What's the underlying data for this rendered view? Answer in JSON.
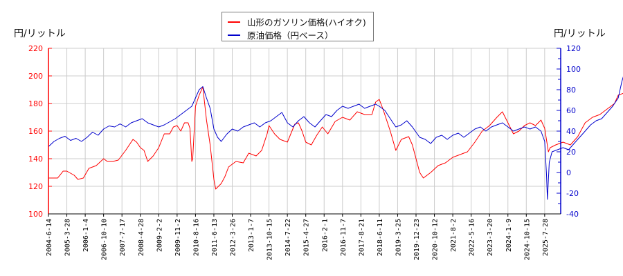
{
  "chart_data": {
    "type": "line",
    "title": "",
    "left_axis": {
      "label": "円/リットル",
      "ylim": [
        100,
        220
      ],
      "ticks": [
        100,
        120,
        140,
        160,
        180,
        200,
        220
      ],
      "color": "#ff0000"
    },
    "right_axis": {
      "label": "円/リットル",
      "ylim": [
        -40,
        120
      ],
      "ticks": [
        -40,
        -20,
        0,
        20,
        40,
        60,
        80,
        100,
        120
      ],
      "color": "#0000cc"
    },
    "grid": true,
    "legend_position": "top-center",
    "x_tick_labels": [
      "2004-6-14",
      "2005-3-28",
      "2006-1-4",
      "2006-10-10",
      "2007-7-17",
      "2008-4-28",
      "2009-2-2",
      "2009-11-2",
      "2010-8-16",
      "2011-6-13",
      "2012-3-26",
      "2013-1-7",
      "2013-10-15",
      "2014-7-22",
      "2015-4-27",
      "2016-2-1",
      "2016-11-7",
      "2017-8-21",
      "2018-6-11",
      "2019-3-25",
      "2019-12-23",
      "2020-10-12",
      "2021-8-2",
      "2022-5-16",
      "2023-3-20",
      "2024-1-9",
      "2024-10-15",
      "2025-7-28"
    ],
    "series": [
      {
        "name": "山形のガソリン価格(ハイオク)",
        "axis": "left",
        "color": "#ff0000",
        "points": [
          [
            0,
            126
          ],
          [
            0.5,
            126
          ],
          [
            0.8,
            131
          ],
          [
            1.0,
            131
          ],
          [
            1.4,
            128
          ],
          [
            1.6,
            125
          ],
          [
            1.9,
            126
          ],
          [
            2.2,
            133
          ],
          [
            2.6,
            135
          ],
          [
            3.0,
            140
          ],
          [
            3.2,
            138
          ],
          [
            3.5,
            138
          ],
          [
            3.8,
            139
          ],
          [
            4.2,
            146
          ],
          [
            4.4,
            150
          ],
          [
            4.6,
            154
          ],
          [
            4.8,
            152
          ],
          [
            5.0,
            148
          ],
          [
            5.2,
            146
          ],
          [
            5.4,
            138
          ],
          [
            5.7,
            142
          ],
          [
            6.0,
            148
          ],
          [
            6.3,
            158
          ],
          [
            6.6,
            158
          ],
          [
            6.8,
            163
          ],
          [
            7.0,
            164
          ],
          [
            7.2,
            160
          ],
          [
            7.4,
            166
          ],
          [
            7.6,
            166
          ],
          [
            7.7,
            162
          ],
          [
            7.8,
            138
          ],
          [
            7.85,
            140
          ],
          [
            8.0,
            178
          ],
          [
            8.2,
            186
          ],
          [
            8.4,
            192
          ],
          [
            8.6,
            168
          ],
          [
            8.8,
            150
          ],
          [
            9.0,
            125
          ],
          [
            9.1,
            118
          ],
          [
            9.4,
            122
          ],
          [
            9.6,
            127
          ],
          [
            9.8,
            134
          ],
          [
            10.2,
            138
          ],
          [
            10.6,
            137
          ],
          [
            10.9,
            144
          ],
          [
            11.3,
            142
          ],
          [
            11.6,
            146
          ],
          [
            11.9,
            158
          ],
          [
            12.0,
            164
          ],
          [
            12.3,
            158
          ],
          [
            12.6,
            154
          ],
          [
            13.0,
            152
          ],
          [
            13.4,
            165
          ],
          [
            13.6,
            166
          ],
          [
            13.8,
            160
          ],
          [
            14.0,
            152
          ],
          [
            14.3,
            150
          ],
          [
            14.6,
            157
          ],
          [
            14.9,
            163
          ],
          [
            15.2,
            158
          ],
          [
            15.6,
            167
          ],
          [
            16.0,
            170
          ],
          [
            16.4,
            168
          ],
          [
            16.8,
            174
          ],
          [
            17.2,
            172
          ],
          [
            17.6,
            172
          ],
          [
            17.8,
            181
          ],
          [
            18.0,
            183
          ],
          [
            18.2,
            176
          ],
          [
            18.6,
            160
          ],
          [
            18.9,
            146
          ],
          [
            19.2,
            154
          ],
          [
            19.6,
            156
          ],
          [
            19.8,
            150
          ],
          [
            20.2,
            130
          ],
          [
            20.4,
            126
          ],
          [
            20.8,
            130
          ],
          [
            21.2,
            135
          ],
          [
            21.6,
            137
          ],
          [
            22.0,
            141
          ],
          [
            22.4,
            143
          ],
          [
            22.8,
            145
          ],
          [
            23.2,
            152
          ],
          [
            23.6,
            160
          ],
          [
            24.0,
            164
          ],
          [
            24.4,
            170
          ],
          [
            24.7,
            174
          ],
          [
            25.0,
            166
          ],
          [
            25.3,
            158
          ],
          [
            25.6,
            160
          ],
          [
            25.9,
            164
          ],
          [
            26.2,
            166
          ],
          [
            26.5,
            164
          ],
          [
            26.8,
            168
          ],
          [
            27.0,
            162
          ],
          [
            27.2,
            145
          ],
          [
            27.3,
            148
          ],
          [
            27.6,
            150
          ],
          [
            28.0,
            152
          ],
          [
            28.4,
            150
          ],
          [
            28.8,
            156
          ],
          [
            29.2,
            166
          ],
          [
            29.6,
            170
          ],
          [
            30.0,
            172
          ],
          [
            30.4,
            176
          ],
          [
            30.8,
            180
          ],
          [
            31.0,
            186
          ],
          [
            31.4,
            188
          ],
          [
            31.7,
            190
          ],
          [
            32.0,
            182
          ],
          [
            32.4,
            180
          ],
          [
            32.7,
            184
          ],
          [
            33.0,
            188
          ],
          [
            33.4,
            186
          ],
          [
            33.8,
            192
          ],
          [
            34.2,
            193
          ],
          [
            34.5,
            187
          ],
          [
            34.8,
            186
          ],
          [
            35.2,
            186
          ],
          [
            35.6,
            188
          ],
          [
            36.0,
            186
          ],
          [
            36.4,
            184
          ],
          [
            36.8,
            186
          ],
          [
            37.2,
            202
          ],
          [
            37.5,
            190
          ],
          [
            37.8,
            188
          ],
          [
            38.1,
            188
          ],
          [
            38.4,
            178
          ],
          [
            38.8,
            180
          ],
          [
            39.2,
            180
          ],
          [
            39.5,
            182
          ],
          [
            39.7,
            175
          ],
          [
            40.0,
            172
          ],
          [
            40.2,
            178
          ],
          [
            40.4,
            185
          ],
          [
            40.6,
            197
          ]
        ]
      },
      {
        "name": "原油価格（円ベース）",
        "axis": "right",
        "color": "#0000cc",
        "points": [
          [
            0,
            25
          ],
          [
            0.3,
            30
          ],
          [
            0.6,
            33
          ],
          [
            0.9,
            35
          ],
          [
            1.2,
            31
          ],
          [
            1.5,
            33
          ],
          [
            1.8,
            30
          ],
          [
            2.1,
            34
          ],
          [
            2.4,
            39
          ],
          [
            2.7,
            36
          ],
          [
            3.0,
            42
          ],
          [
            3.3,
            45
          ],
          [
            3.6,
            44
          ],
          [
            3.9,
            47
          ],
          [
            4.2,
            44
          ],
          [
            4.5,
            48
          ],
          [
            4.8,
            50
          ],
          [
            5.1,
            52
          ],
          [
            5.4,
            48
          ],
          [
            5.7,
            46
          ],
          [
            6.0,
            44
          ],
          [
            6.3,
            46
          ],
          [
            6.6,
            49
          ],
          [
            6.9,
            52
          ],
          [
            7.2,
            56
          ],
          [
            7.5,
            60
          ],
          [
            7.8,
            64
          ],
          [
            8.0,
            72
          ],
          [
            8.2,
            80
          ],
          [
            8.4,
            83
          ],
          [
            8.6,
            72
          ],
          [
            8.8,
            62
          ],
          [
            9.0,
            42
          ],
          [
            9.2,
            34
          ],
          [
            9.4,
            30
          ],
          [
            9.7,
            37
          ],
          [
            10.0,
            42
          ],
          [
            10.3,
            40
          ],
          [
            10.6,
            44
          ],
          [
            10.9,
            46
          ],
          [
            11.2,
            48
          ],
          [
            11.5,
            44
          ],
          [
            11.8,
            48
          ],
          [
            12.1,
            50
          ],
          [
            12.4,
            54
          ],
          [
            12.7,
            58
          ],
          [
            13.0,
            48
          ],
          [
            13.3,
            44
          ],
          [
            13.6,
            50
          ],
          [
            13.9,
            54
          ],
          [
            14.2,
            48
          ],
          [
            14.5,
            44
          ],
          [
            14.8,
            50
          ],
          [
            15.1,
            56
          ],
          [
            15.4,
            54
          ],
          [
            15.7,
            60
          ],
          [
            16.0,
            64
          ],
          [
            16.3,
            62
          ],
          [
            16.6,
            64
          ],
          [
            16.9,
            66
          ],
          [
            17.2,
            62
          ],
          [
            17.5,
            64
          ],
          [
            17.8,
            66
          ],
          [
            18.0,
            64
          ],
          [
            18.3,
            60
          ],
          [
            18.6,
            52
          ],
          [
            18.9,
            44
          ],
          [
            19.2,
            46
          ],
          [
            19.5,
            50
          ],
          [
            19.8,
            44
          ],
          [
            20.2,
            34
          ],
          [
            20.5,
            32
          ],
          [
            20.8,
            28
          ],
          [
            21.1,
            34
          ],
          [
            21.4,
            36
          ],
          [
            21.7,
            32
          ],
          [
            22.0,
            36
          ],
          [
            22.3,
            38
          ],
          [
            22.6,
            34
          ],
          [
            22.9,
            38
          ],
          [
            23.2,
            42
          ],
          [
            23.5,
            44
          ],
          [
            23.8,
            40
          ],
          [
            24.1,
            44
          ],
          [
            24.4,
            46
          ],
          [
            24.7,
            48
          ],
          [
            25.0,
            44
          ],
          [
            25.3,
            40
          ],
          [
            25.6,
            42
          ],
          [
            25.9,
            44
          ],
          [
            26.2,
            42
          ],
          [
            26.5,
            44
          ],
          [
            26.8,
            40
          ],
          [
            27.0,
            30
          ],
          [
            27.1,
            -2
          ],
          [
            27.15,
            -26
          ],
          [
            27.25,
            10
          ],
          [
            27.4,
            20
          ],
          [
            27.7,
            22
          ],
          [
            28.0,
            24
          ],
          [
            28.3,
            22
          ],
          [
            28.6,
            28
          ],
          [
            28.9,
            34
          ],
          [
            29.2,
            40
          ],
          [
            29.5,
            46
          ],
          [
            29.8,
            50
          ],
          [
            30.1,
            52
          ],
          [
            30.4,
            58
          ],
          [
            30.7,
            64
          ],
          [
            31.0,
            72
          ],
          [
            31.2,
            88
          ],
          [
            31.4,
            100
          ],
          [
            31.6,
            82
          ],
          [
            31.9,
            74
          ],
          [
            32.2,
            70
          ],
          [
            32.5,
            66
          ],
          [
            32.8,
            60
          ],
          [
            33.1,
            64
          ],
          [
            33.4,
            60
          ],
          [
            33.7,
            66
          ],
          [
            34.0,
            70
          ],
          [
            34.3,
            74
          ],
          [
            34.6,
            66
          ],
          [
            34.9,
            62
          ],
          [
            35.2,
            66
          ],
          [
            35.5,
            70
          ],
          [
            35.8,
            64
          ],
          [
            36.1,
            66
          ],
          [
            36.4,
            68
          ],
          [
            36.7,
            60
          ],
          [
            37.0,
            60
          ],
          [
            37.3,
            64
          ],
          [
            37.6,
            58
          ],
          [
            37.9,
            60
          ],
          [
            38.2,
            62
          ],
          [
            38.5,
            58
          ],
          [
            38.8,
            56
          ],
          [
            39.1,
            60
          ],
          [
            39.4,
            58
          ],
          [
            39.7,
            56
          ],
          [
            40.0,
            62
          ],
          [
            40.3,
            68
          ],
          [
            40.6,
            84
          ]
        ]
      }
    ]
  },
  "legend": {
    "items": [
      {
        "label": "山形のガソリン価格(ハイオク)",
        "color": "#ff0000"
      },
      {
        "label": "原油価格（円ベース）",
        "color": "#0000cc"
      }
    ]
  },
  "axes": {
    "left_unit": "円/リットル",
    "right_unit": "円/リットル"
  }
}
